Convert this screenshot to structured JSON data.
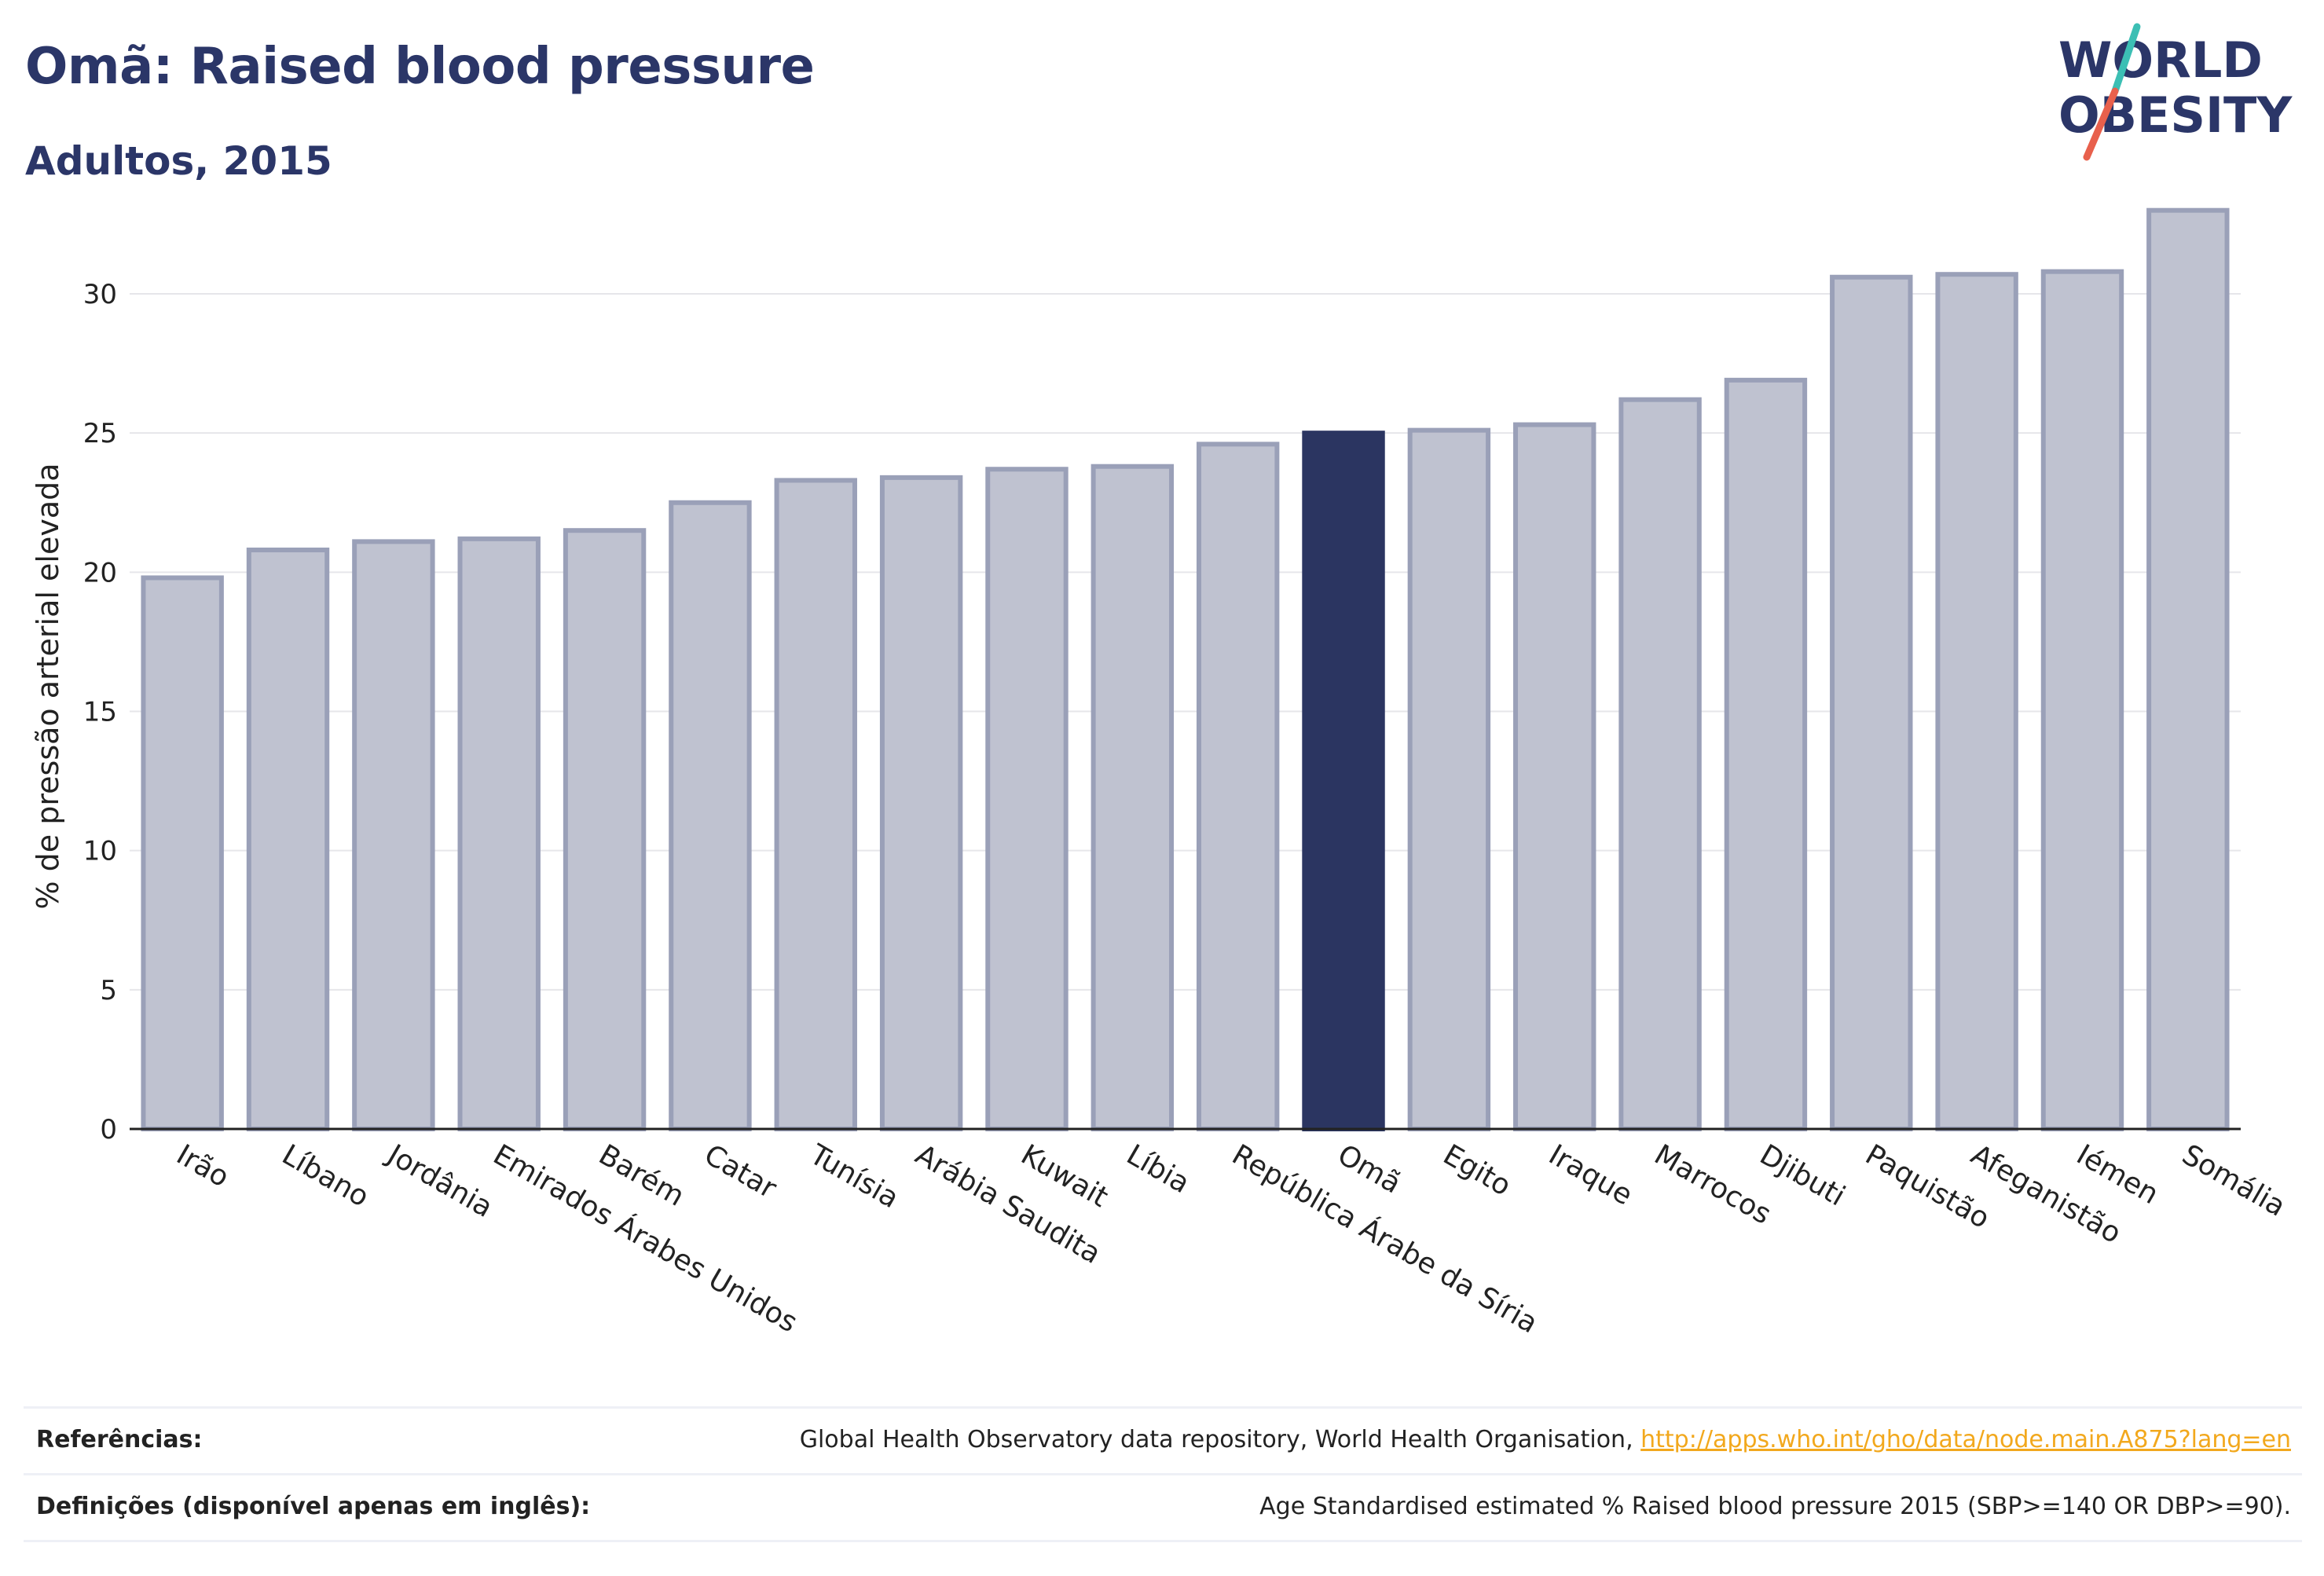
{
  "header": {
    "title": "Omã: Raised blood pressure",
    "subtitle": "Adultos, 2015"
  },
  "logo": {
    "line1": "WORLD",
    "line2": "OBESITY",
    "colors": {
      "text": "#2b3668",
      "slash_teal": "#3cbfb4",
      "slash_red": "#e8604c"
    }
  },
  "chart_data": {
    "type": "bar",
    "ylabel": "% de pressão arterial elevada",
    "ylim": [
      0,
      33.5
    ],
    "yticks": [
      0,
      5,
      10,
      15,
      20,
      25,
      30
    ],
    "grid": true,
    "highlight": "Omã",
    "colors": {
      "bar": "#bfc2d0",
      "bar_border": "#9aa0b8",
      "highlight": "#2b3561"
    },
    "categories": [
      "Irão",
      "Líbano",
      "Jordânia",
      "Emirados Árabes Unidos",
      "Barém",
      "Catar",
      "Tunísia",
      "Arábia Saudita",
      "Kuwait",
      "Líbia",
      "República Árabe da Síria",
      "Omã",
      "Egito",
      "Iraque",
      "Marrocos",
      "Djibuti",
      "Paquistão",
      "Afeganistão",
      "Iémen",
      "Somália"
    ],
    "values": [
      19.8,
      20.8,
      21.1,
      21.2,
      21.5,
      22.5,
      23.3,
      23.4,
      23.7,
      23.8,
      24.6,
      25.0,
      25.1,
      25.3,
      26.2,
      26.9,
      30.6,
      30.7,
      30.8,
      33.0
    ]
  },
  "footer": {
    "references_label": "Referências:",
    "references_text": "Global Health Observatory data repository, World Health Organisation, ",
    "references_link": "http://apps.who.int/gho/data/node.main.A875?lang=en",
    "definitions_label": "Definições (disponível apenas em inglês):",
    "definitions_text": "Age Standardised estimated % Raised blood pressure 2015 (SBP>=140 OR DBP>=90)."
  }
}
